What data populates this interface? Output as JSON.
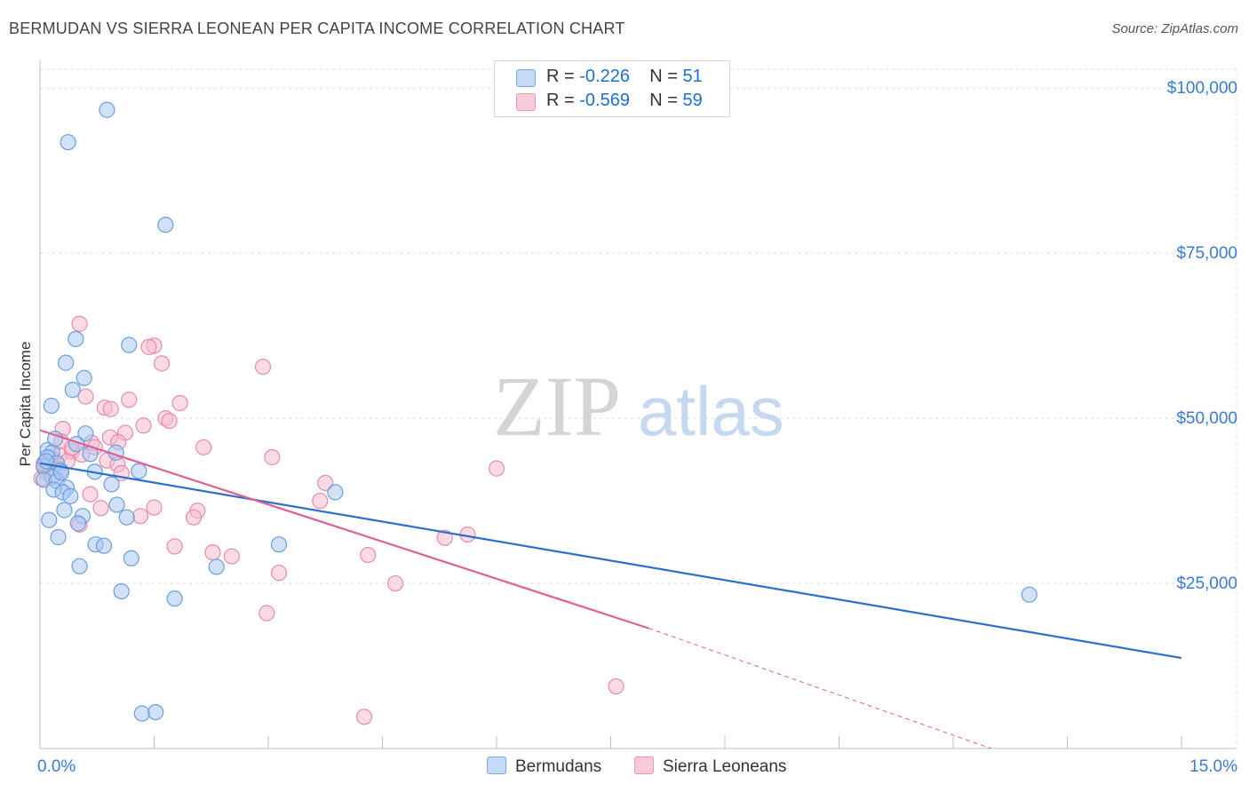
{
  "title": "BERMUDAN VS SIERRA LEONEAN PER CAPITA INCOME CORRELATION CHART",
  "source": "Source: ZipAtlas.com",
  "watermark": {
    "zip": "ZIP",
    "atlas": "atlas"
  },
  "legend": [
    {
      "r_label": "R =",
      "r_value": "-0.226",
      "n_label": "N =",
      "n_value": "51"
    },
    {
      "r_label": "R =",
      "r_value": "-0.569",
      "n_label": "N =",
      "n_value": "59"
    }
  ],
  "colors": {
    "blue_fill": "#a9c9f2",
    "blue_stroke": "#6a9fde",
    "blue_line": "#2a6fd0",
    "pink_fill": "#f6bcd0",
    "pink_stroke": "#e88aab",
    "pink_line": "#e0608f",
    "grid": "#dddddd",
    "axis_text": "#3a7bd5"
  },
  "chart_data": {
    "type": "scatter",
    "title": "BERMUDAN VS SIERRA LEONEAN PER CAPITA INCOME CORRELATION CHART",
    "xlabel": "",
    "ylabel": "Per Capita Income",
    "xlim": [
      0,
      15
    ],
    "ylim": [
      0,
      105000
    ],
    "x_tick_labels": [
      "0.0%",
      "15.0%"
    ],
    "y_ticks": [
      25000,
      50000,
      75000,
      100000
    ],
    "y_tick_labels": [
      "$25,000",
      "$50,000",
      "$75,000",
      "$100,000"
    ],
    "grid": true,
    "series": [
      {
        "name": "Bermudans",
        "points": [
          [
            0.88,
            96700
          ],
          [
            0.37,
            91800
          ],
          [
            1.65,
            79300
          ],
          [
            1.17,
            61100
          ],
          [
            0.47,
            62000
          ],
          [
            0.34,
            58400
          ],
          [
            0.58,
            56100
          ],
          [
            0.43,
            54300
          ],
          [
            0.15,
            51900
          ],
          [
            0.6,
            47700
          ],
          [
            0.48,
            46100
          ],
          [
            0.1,
            45200
          ],
          [
            0.16,
            44800
          ],
          [
            0.1,
            44100
          ],
          [
            0.22,
            43200
          ],
          [
            0.05,
            42700
          ],
          [
            0.27,
            42100
          ],
          [
            0.72,
            41900
          ],
          [
            1.3,
            42000
          ],
          [
            1.0,
            44800
          ],
          [
            0.16,
            41100
          ],
          [
            0.05,
            40700
          ],
          [
            0.22,
            40500
          ],
          [
            0.94,
            40000
          ],
          [
            0.35,
            39500
          ],
          [
            0.18,
            39200
          ],
          [
            0.3,
            38800
          ],
          [
            3.88,
            38800
          ],
          [
            0.4,
            38200
          ],
          [
            1.01,
            36900
          ],
          [
            0.32,
            36100
          ],
          [
            0.56,
            35200
          ],
          [
            1.14,
            35000
          ],
          [
            0.12,
            34600
          ],
          [
            0.5,
            34100
          ],
          [
            0.24,
            32000
          ],
          [
            0.73,
            30900
          ],
          [
            0.84,
            30700
          ],
          [
            3.14,
            30900
          ],
          [
            1.2,
            28800
          ],
          [
            0.52,
            27600
          ],
          [
            2.32,
            27500
          ],
          [
            1.07,
            23800
          ],
          [
            1.77,
            22700
          ],
          [
            13.0,
            23300
          ],
          [
            1.34,
            5300
          ],
          [
            1.52,
            5500
          ],
          [
            0.08,
            43500
          ],
          [
            0.66,
            44600
          ],
          [
            0.2,
            46900
          ],
          [
            0.28,
            41800
          ]
        ]
      },
      {
        "name": "Sierra Leoneans",
        "points": [
          [
            0.52,
            64300
          ],
          [
            1.5,
            61000
          ],
          [
            1.43,
            60800
          ],
          [
            1.6,
            58300
          ],
          [
            2.93,
            57800
          ],
          [
            0.6,
            53300
          ],
          [
            1.17,
            52800
          ],
          [
            1.84,
            52300
          ],
          [
            0.85,
            51600
          ],
          [
            0.93,
            51400
          ],
          [
            1.65,
            50000
          ],
          [
            1.7,
            49600
          ],
          [
            1.36,
            48900
          ],
          [
            0.3,
            48400
          ],
          [
            1.12,
            47800
          ],
          [
            0.92,
            47100
          ],
          [
            0.28,
            46500
          ],
          [
            0.68,
            46300
          ],
          [
            0.72,
            45600
          ],
          [
            2.15,
            45600
          ],
          [
            0.42,
            45000
          ],
          [
            0.55,
            44500
          ],
          [
            0.26,
            44400
          ],
          [
            0.14,
            44100
          ],
          [
            3.05,
            44100
          ],
          [
            0.36,
            43500
          ],
          [
            0.88,
            43600
          ],
          [
            1.02,
            43000
          ],
          [
            0.11,
            42900
          ],
          [
            0.05,
            42600
          ],
          [
            0.23,
            42300
          ],
          [
            6.0,
            42400
          ],
          [
            0.08,
            41900
          ],
          [
            1.07,
            41700
          ],
          [
            0.18,
            41300
          ],
          [
            0.02,
            40900
          ],
          [
            3.75,
            40200
          ],
          [
            0.66,
            38500
          ],
          [
            3.68,
            37500
          ],
          [
            1.5,
            36500
          ],
          [
            2.07,
            36000
          ],
          [
            0.8,
            36400
          ],
          [
            1.32,
            35200
          ],
          [
            2.02,
            35000
          ],
          [
            0.52,
            33900
          ],
          [
            5.62,
            32400
          ],
          [
            5.32,
            31900
          ],
          [
            1.77,
            30600
          ],
          [
            2.27,
            29700
          ],
          [
            2.52,
            29100
          ],
          [
            4.31,
            29300
          ],
          [
            3.14,
            26600
          ],
          [
            4.67,
            25000
          ],
          [
            2.98,
            20500
          ],
          [
            7.57,
            9400
          ],
          [
            4.26,
            4800
          ],
          [
            0.05,
            43200
          ],
          [
            1.03,
            46400
          ],
          [
            0.42,
            45500
          ]
        ]
      }
    ],
    "trend_lines": [
      {
        "series": "Bermudans",
        "x": [
          0,
          15
        ],
        "y": [
          43200,
          13700
        ]
      },
      {
        "series": "Sierra Leoneans",
        "x": [
          0,
          8.0
        ],
        "y": [
          48200,
          18200
        ],
        "dashed_extension": {
          "x": [
            8.0,
            12.5
          ],
          "y": [
            18200,
            0
          ]
        }
      }
    ]
  },
  "bottom_legend": [
    "Bermudans",
    "Sierra Leoneans"
  ]
}
